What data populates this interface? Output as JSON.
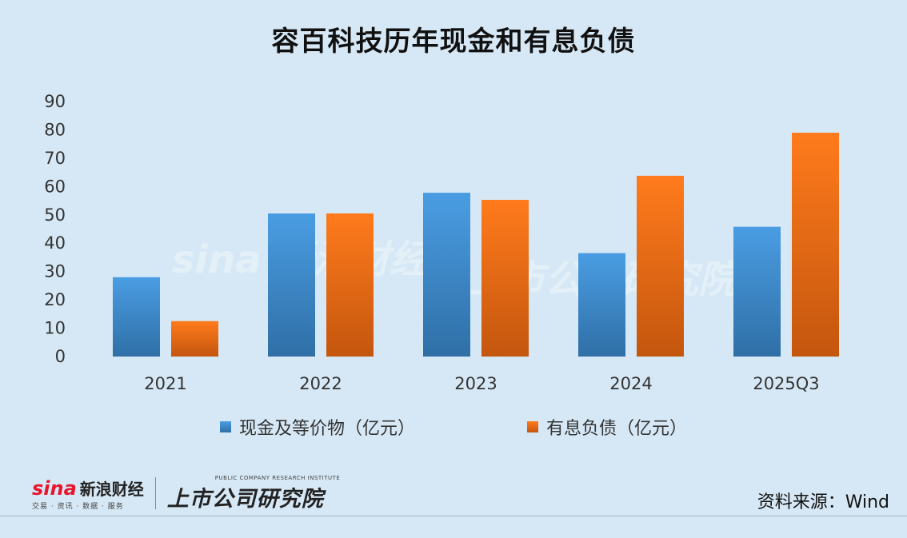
{
  "chart_data": {
    "type": "bar",
    "title": "容百科技历年现金和有息负债",
    "categories": [
      "2021",
      "2022",
      "2023",
      "2024",
      "2025Q3"
    ],
    "series": [
      {
        "name": "现金及等价物（亿元）",
        "values": [
          28,
          50.5,
          57.8,
          36.5,
          45.8
        ]
      },
      {
        "name": "有息负债（亿元）",
        "values": [
          12.5,
          50.5,
          55.3,
          63.8,
          79
        ]
      }
    ],
    "ylim": [
      0,
      90
    ],
    "yticks": [
      "0",
      "10",
      "20",
      "30",
      "40",
      "50",
      "60",
      "70",
      "80",
      "90"
    ],
    "grid": false,
    "legend": "bottom",
    "xlabel": "",
    "ylabel": ""
  },
  "colors": {
    "cash_top": "#4a9de3",
    "cash_bottom": "#2f6fa6",
    "debt_top": "#ff7b1c",
    "debt_bottom": "#c4560e",
    "background": "#d6e8f5"
  },
  "source": "资料来源：Wind",
  "logos": {
    "sina_word": "sina",
    "sina_cn": "新浪财经",
    "sina_sub": "交易 · 资讯 · 数据 · 服务",
    "institute_en": "PUBLIC COMPANY RESEARCH INSTITUTE",
    "institute_cn": "上市公司研究院"
  },
  "watermark": {
    "text1": "sina 新浪财经",
    "text2": "上市公司研究院"
  }
}
